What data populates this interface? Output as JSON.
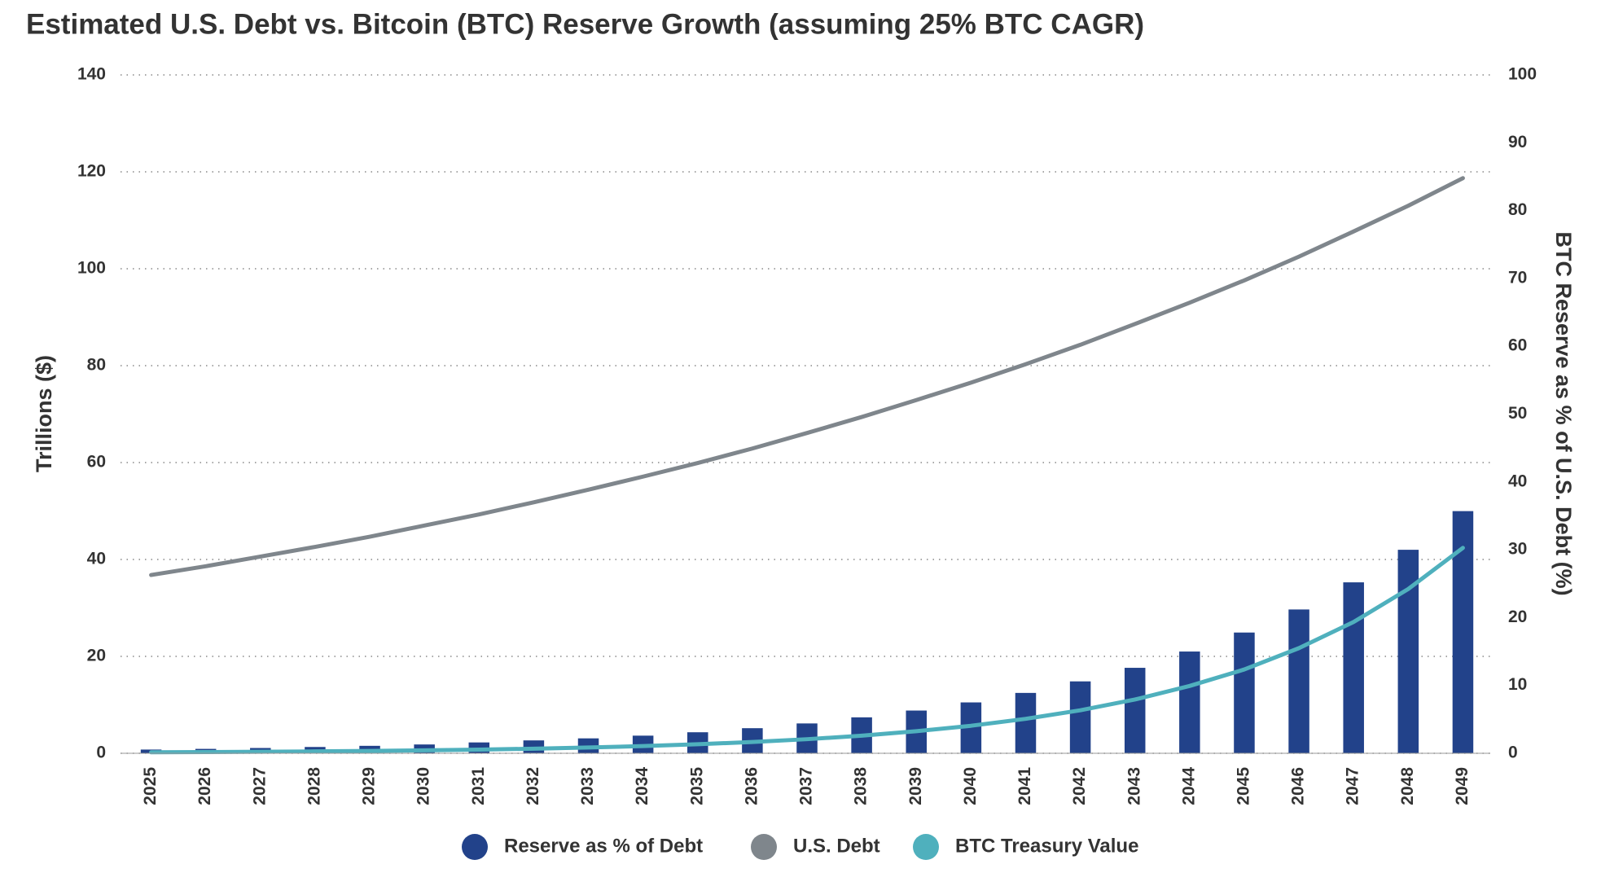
{
  "chart_data": {
    "type": "combo",
    "title": "Estimated U.S. Debt vs. Bitcoin (BTC) Reserve Growth (assuming 25% BTC CAGR)",
    "ylabel": "Trillions ($)",
    "y2label": "BTC Reserve as % of U.S. Debt (%)",
    "categories": [
      "2025",
      "2026",
      "2027",
      "2028",
      "2029",
      "2030",
      "2031",
      "2032",
      "2033",
      "2034",
      "2035",
      "2036",
      "2037",
      "2038",
      "2039",
      "2040",
      "2041",
      "2042",
      "2043",
      "2044",
      "2045",
      "2046",
      "2047",
      "2048",
      "2049"
    ],
    "series": [
      {
        "name": "Reserve as % of Debt",
        "type": "bar",
        "axis": "y2",
        "color": "#22428a",
        "values": [
          0.55,
          0.65,
          0.78,
          0.93,
          1.1,
          1.3,
          1.6,
          1.9,
          2.2,
          2.6,
          3.1,
          3.7,
          4.4,
          5.3,
          6.3,
          7.5,
          8.9,
          10.6,
          12.6,
          15.0,
          17.8,
          21.2,
          25.2,
          30.0,
          35.7
        ]
      },
      {
        "name": "U.S. Debt",
        "type": "line",
        "color": "#7f868c",
        "values": [
          36.8,
          38.6,
          40.6,
          42.6,
          44.7,
          47.0,
          49.3,
          51.8,
          54.4,
          57.1,
          59.9,
          62.9,
          66.1,
          69.4,
          72.9,
          76.5,
          80.3,
          84.3,
          88.6,
          93.0,
          97.6,
          102.5,
          107.7,
          113.0,
          118.7
        ]
      },
      {
        "name": "BTC Treasury Value",
        "type": "line",
        "color": "#4fb0bd",
        "values": [
          0.2,
          0.25,
          0.31,
          0.39,
          0.49,
          0.61,
          0.76,
          0.95,
          1.19,
          1.49,
          1.86,
          2.33,
          2.91,
          3.64,
          4.55,
          5.68,
          7.11,
          8.88,
          11.1,
          13.9,
          17.3,
          21.7,
          27.1,
          33.9,
          42.4
        ]
      }
    ],
    "ylim": [
      0,
      140
    ],
    "yticks": [
      0,
      20,
      40,
      60,
      80,
      100,
      120,
      140
    ],
    "y2lim": [
      0,
      100
    ],
    "y2ticks": [
      0,
      10,
      20,
      30,
      40,
      50,
      60,
      70,
      80,
      90,
      100
    ],
    "grid": true
  }
}
